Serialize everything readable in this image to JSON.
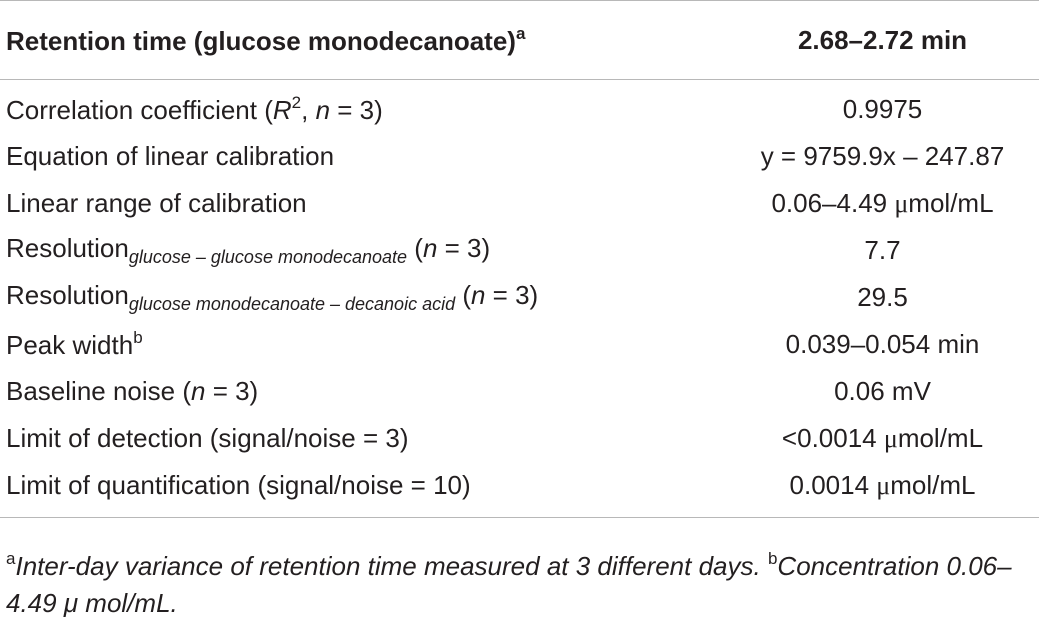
{
  "table": {
    "header": {
      "parameter": "Retention time (glucose monodecanoate)",
      "parameter_sup": "a",
      "value": "2.68–2.72 min"
    },
    "rows": [
      {
        "label": "Correlation coefficient (",
        "italic1": "R",
        "sup": "2",
        "mid": ", ",
        "italic2": "n",
        "tail": " = 3)",
        "value": "0.9975"
      },
      {
        "label": "Equation of linear calibration",
        "value": "y = 9759.9x – 247.87"
      },
      {
        "label": "Linear range of calibration",
        "value_pre": "0.06–4.49 ",
        "value_mu": "μ",
        "value_post": "mol/mL"
      },
      {
        "label": "Resolution",
        "sub": "glucose – glucose monodecanoate",
        "pre_n": " (",
        "n": "n",
        "tail": " = 3)",
        "value": "7.7"
      },
      {
        "label": "Resolution",
        "sub": "glucose monodecanoate – decanoic acid",
        "pre_n": " (",
        "n": "n",
        "tail": " = 3)",
        "value": "29.5"
      },
      {
        "label": "Peak width",
        "sup": "b",
        "value": "0.039–0.054 min"
      },
      {
        "label": "Baseline noise (",
        "n": "n",
        "tail": " = 3)",
        "value": "0.06 mV"
      },
      {
        "label": "Limit of detection (signal/noise = 3)",
        "value_pre": "<0.0014 ",
        "value_mu": "μ",
        "value_post": "mol/mL"
      },
      {
        "label": "Limit of quantification (signal/noise = 10)",
        "value_pre": "0.0014 ",
        "value_mu": "μ",
        "value_post": "mol/mL"
      }
    ]
  },
  "footnotes": {
    "a_mark": "a",
    "a_text": "Inter-day variance of retention time measured at 3 different days. ",
    "b_mark": "b",
    "b_text": "Concentration 0.06–4.49 μ  mol/mL."
  }
}
